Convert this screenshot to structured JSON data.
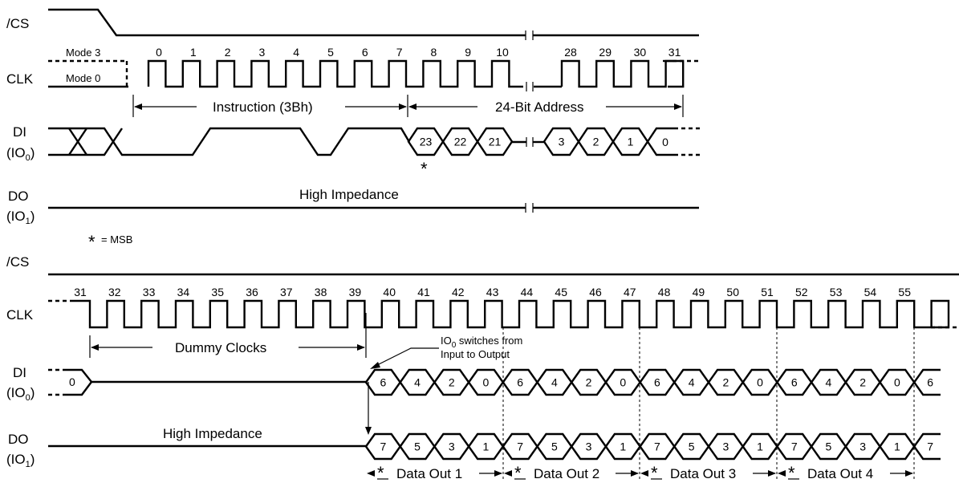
{
  "signals": {
    "cs_top": "/CS",
    "clk_top": "CLK",
    "di_top_1": "DI",
    "di_top_2": "(IO",
    "di_top_sub": "0",
    "di_top_3": ")",
    "do_top_1": "DO",
    "do_top_2": "(IO",
    "do_top_sub": "1",
    "do_top_3": ")",
    "cs_bot": "/CS",
    "clk_bot": "CLK",
    "di_bot_1": "DI",
    "di_bot_2": "(IO",
    "di_bot_sub": "0",
    "di_bot_3": ")",
    "do_bot_1": "DO",
    "do_bot_2": "(IO",
    "do_bot_sub": "1",
    "do_bot_3": ")"
  },
  "modes": {
    "mode3": "Mode 3",
    "mode0": "Mode 0"
  },
  "clock_numbers_top_a": [
    "0",
    "1",
    "2",
    "3",
    "4",
    "5",
    "6",
    "7",
    "8",
    "9",
    "10"
  ],
  "clock_numbers_top_b": [
    "28",
    "29",
    "30",
    "31"
  ],
  "clock_numbers_bottom": [
    "31",
    "32",
    "33",
    "34",
    "35",
    "36",
    "37",
    "38",
    "39",
    "40",
    "41",
    "42",
    "43",
    "44",
    "45",
    "46",
    "47",
    "48",
    "49",
    "50",
    "51",
    "52",
    "53",
    "54",
    "55"
  ],
  "labels": {
    "instruction": "Instruction (3Bh)",
    "address": "24-Bit Address",
    "high_z_top": "High Impedance",
    "msb_star": "*",
    "msb_legend": "= MSB",
    "dummy": "Dummy Clocks",
    "switch_1": "IO",
    "switch_sub": "0",
    "switch_2": " switches from",
    "switch_3": "Input to Output",
    "high_z_bottom": "High Impedance"
  },
  "di_address_bits_a": [
    "23",
    "22",
    "21"
  ],
  "di_address_bits_b": [
    "3",
    "2",
    "1",
    "0"
  ],
  "di_tail_value": "0",
  "di_out_bits": [
    "6",
    "4",
    "2",
    "0",
    "6",
    "4",
    "2",
    "0",
    "6",
    "4",
    "2",
    "0",
    "6",
    "4",
    "2",
    "0",
    "6"
  ],
  "do_out_bits": [
    "7",
    "5",
    "3",
    "1",
    "7",
    "5",
    "3",
    "1",
    "7",
    "5",
    "3",
    "1",
    "7",
    "5",
    "3",
    "1",
    "7"
  ],
  "data_out": [
    "Data Out 1",
    "Data Out 2",
    "Data Out 3",
    "Data Out 4"
  ]
}
